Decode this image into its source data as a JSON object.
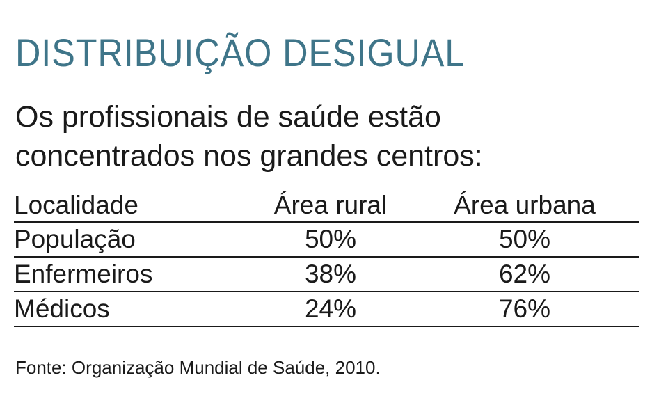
{
  "title": "DISTRIBUIÇÃO DESIGUAL",
  "subtitle": {
    "line1": "Os profissionais de saúde estão",
    "line2": "concentrados nos grandes centros:"
  },
  "table": {
    "headers": [
      "Localidade",
      "Área rural",
      "Área urbana"
    ],
    "rows": [
      {
        "label": "População",
        "rural": "50%",
        "urbana": "50%"
      },
      {
        "label": "Enfermeiros",
        "rural": "38%",
        "urbana": "62%"
      },
      {
        "label": "Médicos",
        "rural": "24%",
        "urbana": "76%"
      }
    ]
  },
  "source": "Fonte: Organização Mundial de Saúde, 2010.",
  "colors": {
    "title": "#3f7589",
    "text": "#1a1a1a"
  }
}
